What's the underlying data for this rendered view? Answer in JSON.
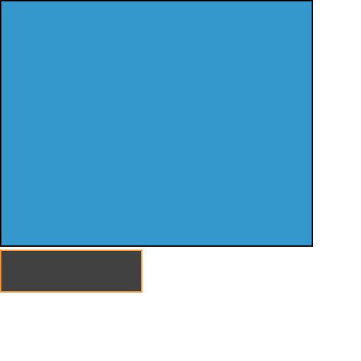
{
  "colors": {
    "page_background": "#ffffff",
    "main_panel_fill": "#3498cc",
    "main_panel_border": "#000000",
    "small_block_fill": "#414141",
    "small_block_border": "#f0973b"
  }
}
